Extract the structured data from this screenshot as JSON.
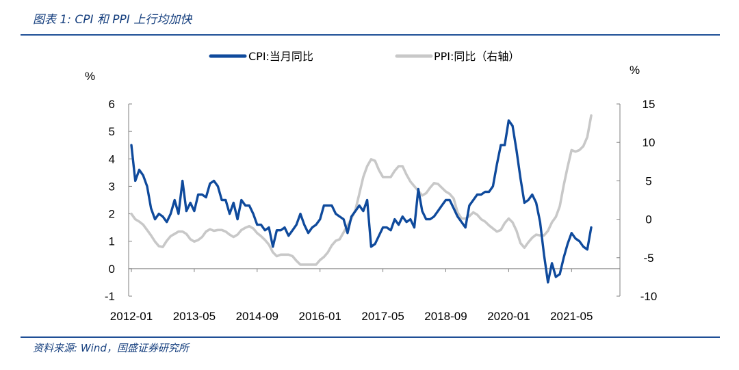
{
  "figure": {
    "title": "图表 1: CPI 和 PPI 上行均加快",
    "source": "资料来源: Wind，国盛证券研究所"
  },
  "chart_data": {
    "type": "line",
    "x": [
      "2012-01",
      "2012-02",
      "2012-03",
      "2012-04",
      "2012-05",
      "2012-06",
      "2012-07",
      "2012-08",
      "2012-09",
      "2012-10",
      "2012-11",
      "2012-12",
      "2013-01",
      "2013-02",
      "2013-03",
      "2013-04",
      "2013-05",
      "2013-06",
      "2013-07",
      "2013-08",
      "2013-09",
      "2013-10",
      "2013-11",
      "2013-12",
      "2014-01",
      "2014-02",
      "2014-03",
      "2014-04",
      "2014-05",
      "2014-06",
      "2014-07",
      "2014-08",
      "2014-09",
      "2014-10",
      "2014-11",
      "2014-12",
      "2015-01",
      "2015-02",
      "2015-03",
      "2015-04",
      "2015-05",
      "2015-06",
      "2015-07",
      "2015-08",
      "2015-09",
      "2015-10",
      "2015-11",
      "2015-12",
      "2016-01",
      "2016-02",
      "2016-03",
      "2016-04",
      "2016-05",
      "2016-06",
      "2016-07",
      "2016-08",
      "2016-09",
      "2016-10",
      "2016-11",
      "2016-12",
      "2017-01",
      "2017-02",
      "2017-03",
      "2017-04",
      "2017-05",
      "2017-06",
      "2017-07",
      "2017-08",
      "2017-09",
      "2017-10",
      "2017-11",
      "2017-12",
      "2018-01",
      "2018-02",
      "2018-03",
      "2018-04",
      "2018-05",
      "2018-06",
      "2018-07",
      "2018-08",
      "2018-09",
      "2018-10",
      "2018-11",
      "2018-12",
      "2019-01",
      "2019-02",
      "2019-03",
      "2019-04",
      "2019-05",
      "2019-06",
      "2019-07",
      "2019-08",
      "2019-09",
      "2019-10",
      "2019-11",
      "2019-12",
      "2020-01",
      "2020-02",
      "2020-03",
      "2020-04",
      "2020-05",
      "2020-06",
      "2020-07",
      "2020-08",
      "2020-09",
      "2020-10",
      "2020-11",
      "2020-12",
      "2021-01",
      "2021-02",
      "2021-03",
      "2021-04",
      "2021-05",
      "2021-06",
      "2021-07",
      "2021-08",
      "2021-09",
      "2021-10"
    ],
    "series": [
      {
        "name": "CPI:当月同比",
        "axis": "left",
        "color": "#0f4a9c",
        "values": [
          4.5,
          3.2,
          3.6,
          3.4,
          3.0,
          2.2,
          1.8,
          2.0,
          1.9,
          1.7,
          2.0,
          2.5,
          2.0,
          3.2,
          2.1,
          2.4,
          2.1,
          2.7,
          2.7,
          2.6,
          3.1,
          3.2,
          3.0,
          2.5,
          2.5,
          2.0,
          2.4,
          1.8,
          2.5,
          2.3,
          2.3,
          2.0,
          1.6,
          1.6,
          1.4,
          1.5,
          0.8,
          1.4,
          1.4,
          1.5,
          1.2,
          1.4,
          1.6,
          2.0,
          1.6,
          1.3,
          1.5,
          1.6,
          1.8,
          2.3,
          2.3,
          2.3,
          2.0,
          1.9,
          1.8,
          1.3,
          1.9,
          2.1,
          2.3,
          2.1,
          2.5,
          0.8,
          0.9,
          1.2,
          1.5,
          1.5,
          1.4,
          1.8,
          1.6,
          1.9,
          1.7,
          1.8,
          1.5,
          2.9,
          2.1,
          1.8,
          1.8,
          1.9,
          2.1,
          2.3,
          2.5,
          2.5,
          2.2,
          1.9,
          1.7,
          1.5,
          2.3,
          2.5,
          2.7,
          2.7,
          2.8,
          2.8,
          3.0,
          3.8,
          4.5,
          4.5,
          5.4,
          5.2,
          4.3,
          3.3,
          2.4,
          2.5,
          2.7,
          2.4,
          1.7,
          0.5,
          -0.5,
          0.2,
          -0.3,
          -0.2,
          0.4,
          0.9,
          1.3,
          1.1,
          1.0,
          0.8,
          0.7,
          1.5
        ]
      },
      {
        "name": "PPI:同比（右轴）",
        "axis": "right",
        "color": "#c8c8c8",
        "values": [
          0.7,
          0.0,
          -0.3,
          -0.7,
          -1.4,
          -2.1,
          -2.9,
          -3.5,
          -3.6,
          -2.8,
          -2.2,
          -1.9,
          -1.6,
          -1.6,
          -1.9,
          -2.6,
          -2.9,
          -2.7,
          -2.3,
          -1.6,
          -1.3,
          -1.5,
          -1.4,
          -1.4,
          -1.6,
          -2.0,
          -2.3,
          -2.0,
          -1.4,
          -1.1,
          -0.9,
          -1.2,
          -1.8,
          -2.2,
          -2.7,
          -3.3,
          -4.3,
          -4.8,
          -4.6,
          -4.6,
          -4.6,
          -4.8,
          -5.4,
          -5.9,
          -5.9,
          -5.9,
          -5.9,
          -5.9,
          -5.3,
          -4.9,
          -4.3,
          -3.4,
          -2.8,
          -2.6,
          -1.7,
          -0.8,
          0.1,
          1.2,
          3.3,
          5.5,
          6.9,
          7.8,
          7.6,
          6.4,
          5.5,
          5.5,
          5.5,
          6.3,
          6.9,
          6.9,
          5.8,
          4.9,
          4.3,
          3.7,
          3.1,
          3.4,
          4.1,
          4.7,
          4.6,
          4.1,
          3.6,
          3.3,
          2.7,
          0.9,
          0.1,
          0.1,
          0.4,
          0.9,
          0.6,
          0.0,
          -0.3,
          -0.8,
          -1.2,
          -1.6,
          -1.4,
          -0.5,
          0.1,
          -0.4,
          -1.5,
          -3.1,
          -3.7,
          -3.0,
          -2.4,
          -2.0,
          -2.1,
          -2.1,
          -1.5,
          -0.4,
          0.3,
          1.7,
          4.4,
          6.8,
          9.0,
          8.8,
          9.0,
          9.5,
          10.7,
          13.5
        ]
      }
    ],
    "x_tick_labels": [
      "2012-01",
      "2013-05",
      "2014-09",
      "2016-01",
      "2017-05",
      "2018-09",
      "2020-01",
      "2021-05"
    ],
    "y_left": {
      "unit": "%",
      "ticks": [
        6,
        5,
        4,
        3,
        2,
        1,
        0,
        -1
      ],
      "ylim": [
        -1,
        6
      ]
    },
    "y_right": {
      "unit": "%",
      "ticks": [
        15,
        10,
        5,
        0,
        -5,
        -10
      ],
      "ylim": [
        -10,
        15
      ]
    },
    "legend_position": "top-center",
    "grid": false
  }
}
